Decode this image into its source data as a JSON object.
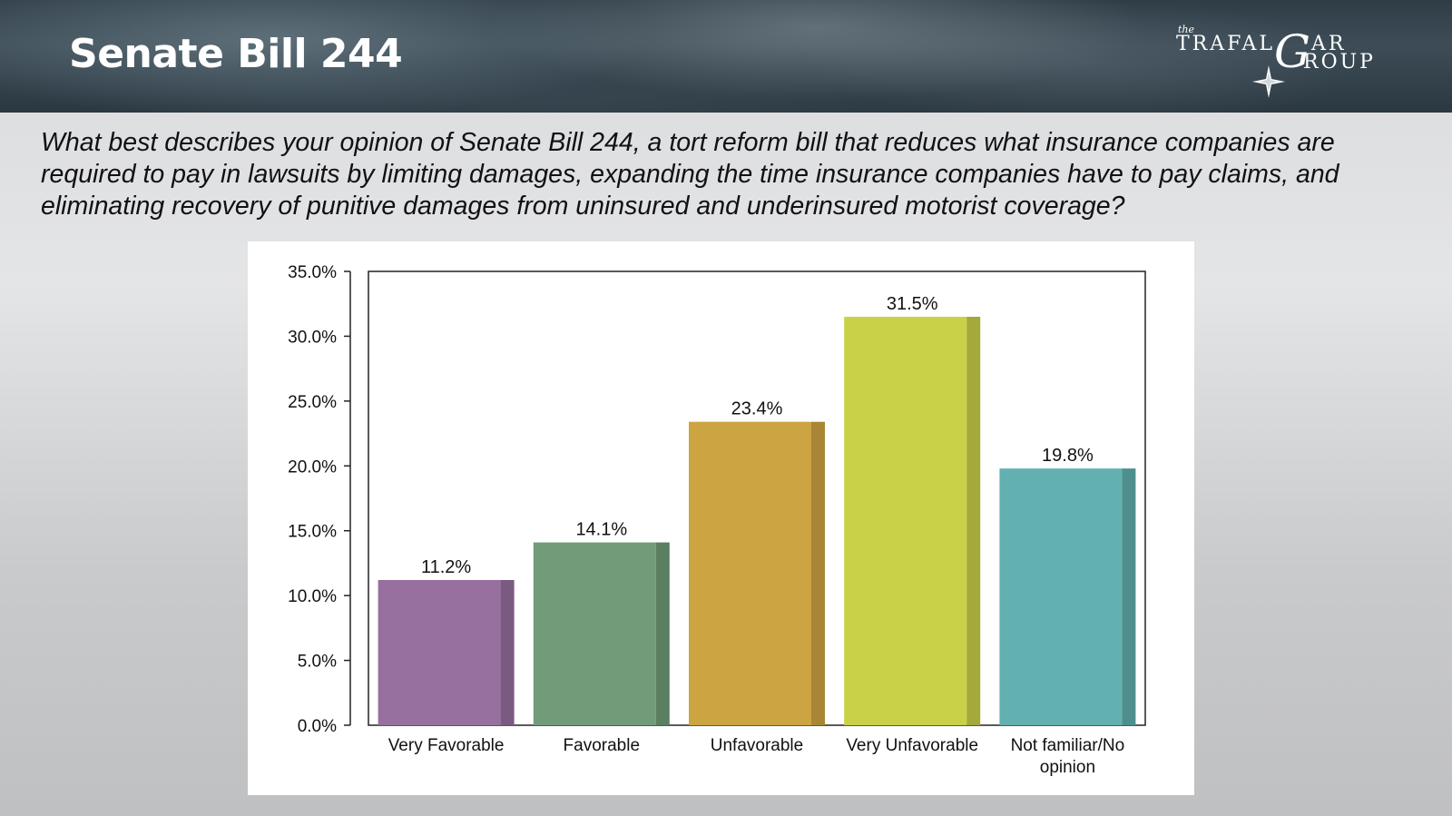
{
  "header": {
    "title": "Senate Bill 244",
    "logo": {
      "the": "the",
      "word1": "TRAFAL",
      "letter_g": "G",
      "suffix_ar": "AR",
      "word2": "ROUP"
    }
  },
  "question": "What best describes your opinion of Senate Bill 244, a tort reform bill that reduces what insurance companies are required to pay in lawsuits by limiting damages, expanding the time insurance companies have to pay claims, and eliminating recovery of punitive damages from uninsured and underinsured motorist coverage?",
  "chart_data": {
    "type": "bar",
    "title": "",
    "xlabel": "",
    "ylabel": "",
    "ylim": [
      0,
      35
    ],
    "yticks": [
      "0.0%",
      "5.0%",
      "10.0%",
      "15.0%",
      "20.0%",
      "25.0%",
      "30.0%",
      "35.0%"
    ],
    "categories": [
      "Very Favorable",
      "Favorable",
      "Unfavorable",
      "Very Unfavorable",
      "Not familiar/No opinion"
    ],
    "category_lines": [
      [
        "Very Favorable"
      ],
      [
        "Favorable"
      ],
      [
        "Unfavorable"
      ],
      [
        "Very Unfavorable"
      ],
      [
        "Not familiar/No",
        "opinion"
      ]
    ],
    "values": [
      11.2,
      14.1,
      23.4,
      31.5,
      19.8
    ],
    "value_labels": [
      "11.2%",
      "14.1%",
      "23.4%",
      "31.5%",
      "19.8%"
    ],
    "colors": [
      "#98709f",
      "#719b79",
      "#cca442",
      "#c9d148",
      "#62b1b0"
    ],
    "shade_colors": [
      "#7b5a81",
      "#5a7f61",
      "#a88636",
      "#a3aa39",
      "#4e8f8e"
    ]
  }
}
